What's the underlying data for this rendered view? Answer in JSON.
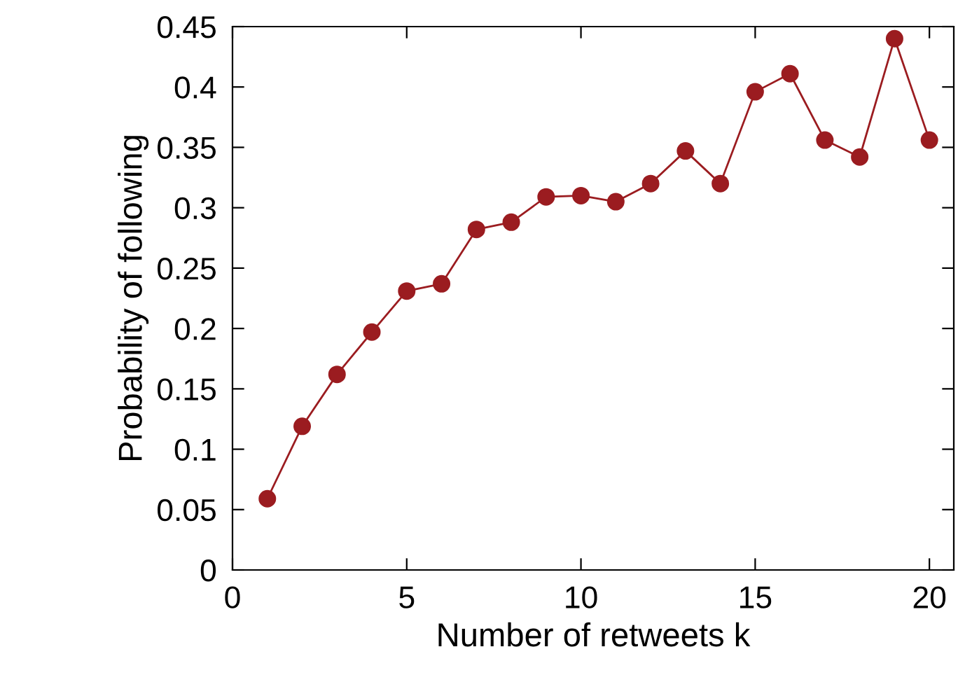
{
  "chart_data": {
    "type": "line",
    "xlabel": "Number of retweets k",
    "ylabel": "Probability of following",
    "x": [
      1,
      2,
      3,
      4,
      5,
      6,
      7,
      8,
      9,
      10,
      11,
      12,
      13,
      14,
      15,
      16,
      17,
      18,
      19,
      20
    ],
    "series": [
      {
        "color": "#9b1c20",
        "values": [
          0.059,
          0.119,
          0.162,
          0.197,
          0.231,
          0.237,
          0.282,
          0.288,
          0.309,
          0.31,
          0.305,
          0.32,
          0.347,
          0.32,
          0.396,
          0.411,
          0.356,
          0.342,
          0.44,
          0.356
        ]
      }
    ],
    "marker": "circle",
    "line_style": "solid",
    "grid": false,
    "legend": false,
    "xlim": [
      0,
      20.7
    ],
    "xticks": [
      0,
      5,
      10,
      15,
      20
    ],
    "ylim": [
      0,
      0.45
    ],
    "yticks": [
      0,
      0.05,
      0.1,
      0.15,
      0.2,
      0.25,
      0.3,
      0.35,
      0.4,
      0.45
    ]
  }
}
